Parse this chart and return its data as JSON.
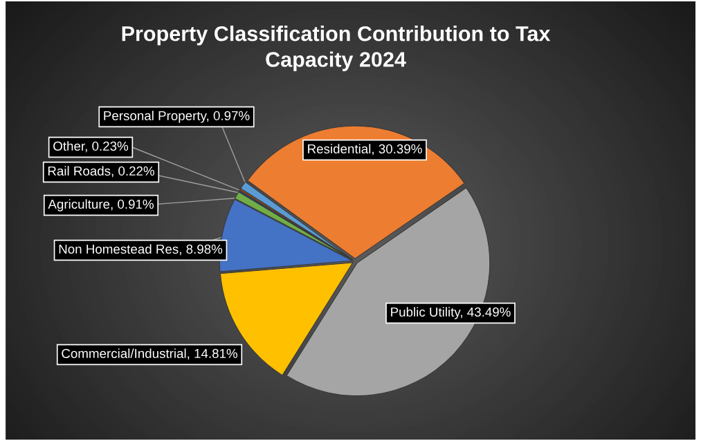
{
  "chart_data": {
    "type": "pie",
    "title": "Property Classification Contribution to Tax\nCapacity 2024",
    "categories": [
      "Residential",
      "Public Utility",
      "Commercial/Industrial",
      "Non Homestead Res",
      "Agriculture",
      "Rail Roads",
      "Other",
      "Personal Property"
    ],
    "values": [
      30.39,
      43.49,
      14.81,
      8.98,
      0.91,
      0.22,
      0.23,
      0.97
    ],
    "value_labels": [
      "30.39%",
      "43.49%",
      "14.81%",
      "8.98%",
      "0.91%",
      "0.22%",
      "0.23%",
      "0.97%"
    ],
    "colors": [
      "#ed7d31",
      "#a5a5a5",
      "#ffc000",
      "#4472c4",
      "#70ad47",
      "#264478",
      "#9e480e",
      "#5b9bd5"
    ],
    "legend": false
  }
}
